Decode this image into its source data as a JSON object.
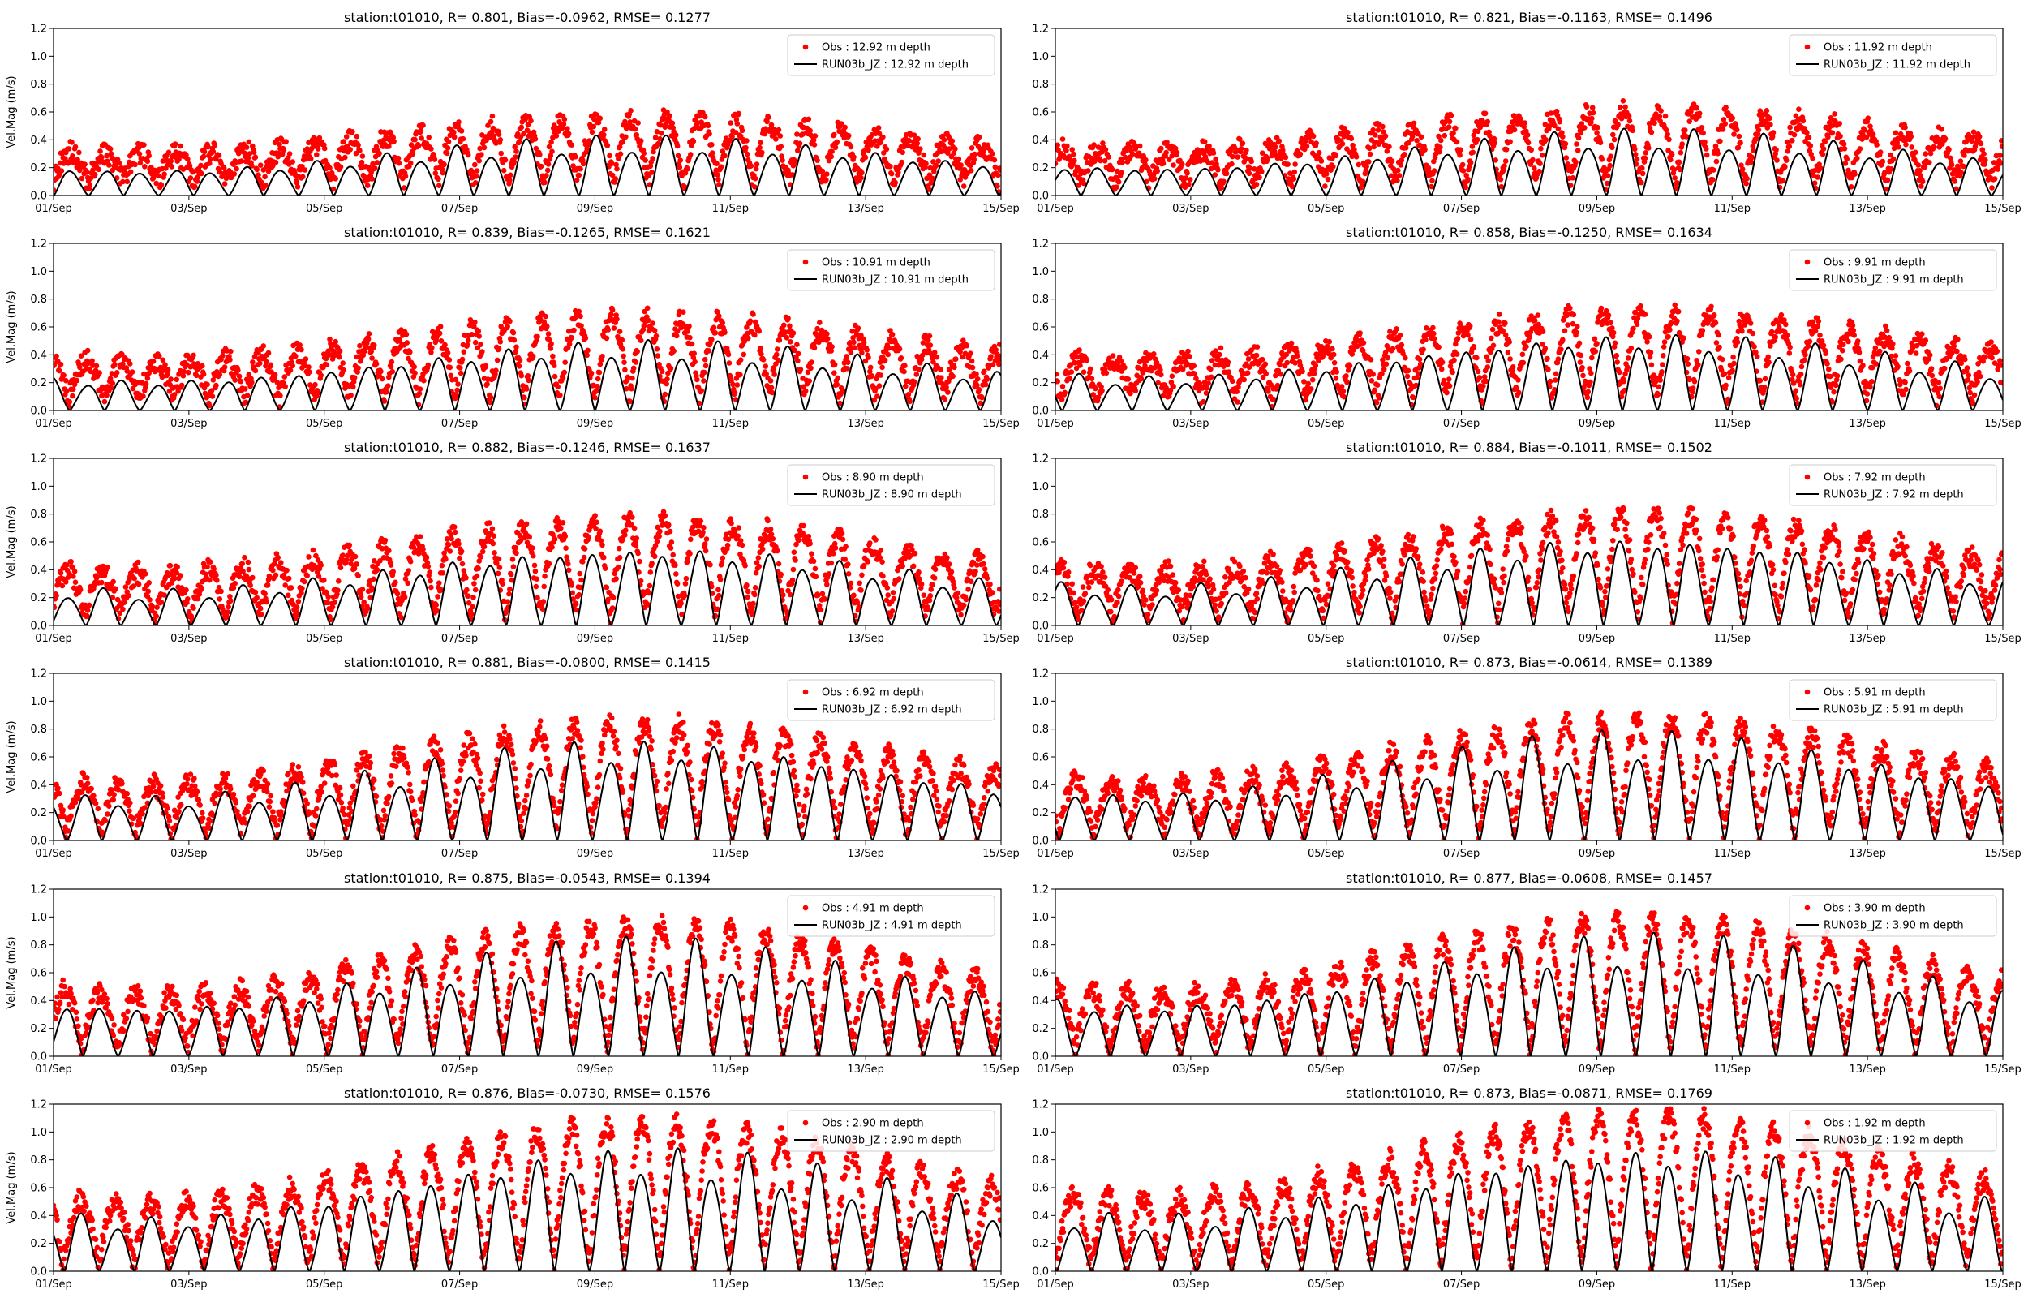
{
  "chart_data": [
    {
      "type": "scatter",
      "title": "station:t01010, R= 0.801, Bias=-0.0962, RMSE= 0.1277",
      "ylabel": "Vel.Mag (m/s)",
      "xlim": [
        "01/Sep",
        "15/Sep"
      ],
      "ylim": [
        0,
        1.2
      ],
      "xticks": [
        "01/Sep",
        "03/Sep",
        "05/Sep",
        "07/Sep",
        "09/Sep",
        "11/Sep",
        "13/Sep",
        "15/Sep"
      ],
      "yticks": [
        "0.0",
        "0.2",
        "0.4",
        "0.6",
        "0.8",
        "1.0",
        "1.2"
      ],
      "legend_placement": "upper right",
      "series": [
        {
          "name": "Obs : 12.92 m depth",
          "kind": "points",
          "color": "#ff0000",
          "approx_peak": 0.5,
          "approx_trough": 0.1
        },
        {
          "name": "RUN03b_JZ : 12.92 m depth",
          "kind": "line",
          "color": "#000000",
          "approx_peak": 0.38,
          "approx_trough": 0.0
        }
      ]
    },
    {
      "type": "scatter",
      "title": "station:t01010, R= 0.821, Bias=-0.1163, RMSE= 0.1496",
      "ylabel": "",
      "xlim": [
        "01/Sep",
        "15/Sep"
      ],
      "ylim": [
        0,
        1.2
      ],
      "xticks": [
        "01/Sep",
        "03/Sep",
        "05/Sep",
        "07/Sep",
        "09/Sep",
        "11/Sep",
        "13/Sep",
        "15/Sep"
      ],
      "yticks": [
        "0.0",
        "0.2",
        "0.4",
        "0.6",
        "0.8",
        "1.0",
        "1.2"
      ],
      "legend_placement": "upper right",
      "series": [
        {
          "name": "Obs : 11.92 m depth",
          "kind": "points",
          "color": "#ff0000",
          "approx_peak": 0.55,
          "approx_trough": 0.1
        },
        {
          "name": "RUN03b_JZ : 11.92 m depth",
          "kind": "line",
          "color": "#000000",
          "approx_peak": 0.42,
          "approx_trough": 0.0
        }
      ]
    },
    {
      "type": "scatter",
      "title": "station:t01010, R= 0.839, Bias=-0.1265, RMSE= 0.1621",
      "ylabel": "Vel.Mag (m/s)",
      "xlim": [
        "01/Sep",
        "15/Sep"
      ],
      "ylim": [
        0,
        1.2
      ],
      "xticks": [
        "01/Sep",
        "03/Sep",
        "05/Sep",
        "07/Sep",
        "09/Sep",
        "11/Sep",
        "13/Sep",
        "15/Sep"
      ],
      "yticks": [
        "0.0",
        "0.2",
        "0.4",
        "0.6",
        "0.8",
        "1.0",
        "1.2"
      ],
      "legend_placement": "upper right",
      "series": [
        {
          "name": "Obs : 10.91 m depth",
          "kind": "points",
          "color": "#ff0000",
          "approx_peak": 0.6,
          "approx_trough": 0.1
        },
        {
          "name": "RUN03b_JZ : 10.91 m depth",
          "kind": "line",
          "color": "#000000",
          "approx_peak": 0.45,
          "approx_trough": 0.0
        }
      ]
    },
    {
      "type": "scatter",
      "title": "station:t01010, R= 0.858, Bias=-0.1250, RMSE= 0.1634",
      "ylabel": "",
      "xlim": [
        "01/Sep",
        "15/Sep"
      ],
      "ylim": [
        0,
        1.2
      ],
      "xticks": [
        "01/Sep",
        "03/Sep",
        "05/Sep",
        "07/Sep",
        "09/Sep",
        "11/Sep",
        "13/Sep",
        "15/Sep"
      ],
      "yticks": [
        "0.0",
        "0.2",
        "0.4",
        "0.6",
        "0.8",
        "1.0",
        "1.2"
      ],
      "legend_placement": "upper right",
      "series": [
        {
          "name": "Obs : 9.91 m depth",
          "kind": "points",
          "color": "#ff0000",
          "approx_peak": 0.63,
          "approx_trough": 0.1
        },
        {
          "name": "RUN03b_JZ : 9.91 m depth",
          "kind": "line",
          "color": "#000000",
          "approx_peak": 0.5,
          "approx_trough": 0.0
        }
      ]
    },
    {
      "type": "scatter",
      "title": "station:t01010, R= 0.882, Bias=-0.1246, RMSE= 0.1637",
      "ylabel": "Vel.Mag (m/s)",
      "xlim": [
        "01/Sep",
        "15/Sep"
      ],
      "ylim": [
        0,
        1.2
      ],
      "xticks": [
        "01/Sep",
        "03/Sep",
        "05/Sep",
        "07/Sep",
        "09/Sep",
        "11/Sep",
        "13/Sep",
        "15/Sep"
      ],
      "yticks": [
        "0.0",
        "0.2",
        "0.4",
        "0.6",
        "0.8",
        "1.0",
        "1.2"
      ],
      "legend_placement": "upper right",
      "series": [
        {
          "name": "Obs : 8.90 m depth",
          "kind": "points",
          "color": "#ff0000",
          "approx_peak": 0.68,
          "approx_trough": 0.08
        },
        {
          "name": "RUN03b_JZ : 8.90 m depth",
          "kind": "line",
          "color": "#000000",
          "approx_peak": 0.52,
          "approx_trough": 0.0
        }
      ]
    },
    {
      "type": "scatter",
      "title": "station:t01010, R= 0.884, Bias=-0.1011, RMSE= 0.1502",
      "ylabel": "",
      "xlim": [
        "01/Sep",
        "15/Sep"
      ],
      "ylim": [
        0,
        1.2
      ],
      "xticks": [
        "01/Sep",
        "03/Sep",
        "05/Sep",
        "07/Sep",
        "09/Sep",
        "11/Sep",
        "13/Sep",
        "15/Sep"
      ],
      "yticks": [
        "0.0",
        "0.2",
        "0.4",
        "0.6",
        "0.8",
        "1.0",
        "1.2"
      ],
      "legend_placement": "upper right",
      "series": [
        {
          "name": "Obs : 7.92 m depth",
          "kind": "points",
          "color": "#ff0000",
          "approx_peak": 0.72,
          "approx_trough": 0.08
        },
        {
          "name": "RUN03b_JZ : 7.92 m depth",
          "kind": "line",
          "color": "#000000",
          "approx_peak": 0.58,
          "approx_trough": 0.0
        }
      ]
    },
    {
      "type": "scatter",
      "title": "station:t01010, R= 0.881, Bias=-0.0800, RMSE= 0.1415",
      "ylabel": "Vel.Mag (m/s)",
      "xlim": [
        "01/Sep",
        "15/Sep"
      ],
      "ylim": [
        0,
        1.2
      ],
      "xticks": [
        "01/Sep",
        "03/Sep",
        "05/Sep",
        "07/Sep",
        "09/Sep",
        "11/Sep",
        "13/Sep",
        "15/Sep"
      ],
      "yticks": [
        "0.0",
        "0.2",
        "0.4",
        "0.6",
        "0.8",
        "1.0",
        "1.2"
      ],
      "legend_placement": "upper right",
      "series": [
        {
          "name": "Obs : 6.92 m depth",
          "kind": "points",
          "color": "#ff0000",
          "approx_peak": 0.75,
          "approx_trough": 0.06
        },
        {
          "name": "RUN03b_JZ : 6.92 m depth",
          "kind": "line",
          "color": "#000000",
          "approx_peak": 0.65,
          "approx_trough": 0.0
        }
      ]
    },
    {
      "type": "scatter",
      "title": "station:t01010, R= 0.873, Bias=-0.0614, RMSE= 0.1389",
      "ylabel": "",
      "xlim": [
        "01/Sep",
        "15/Sep"
      ],
      "ylim": [
        0,
        1.2
      ],
      "xticks": [
        "01/Sep",
        "03/Sep",
        "05/Sep",
        "07/Sep",
        "09/Sep",
        "11/Sep",
        "13/Sep",
        "15/Sep"
      ],
      "yticks": [
        "0.0",
        "0.2",
        "0.4",
        "0.6",
        "0.8",
        "1.0",
        "1.2"
      ],
      "legend_placement": "upper right",
      "series": [
        {
          "name": "Obs : 5.91 m depth",
          "kind": "points",
          "color": "#ff0000",
          "approx_peak": 0.78,
          "approx_trough": 0.06
        },
        {
          "name": "RUN03b_JZ : 5.91 m depth",
          "kind": "line",
          "color": "#000000",
          "approx_peak": 0.7,
          "approx_trough": 0.0
        }
      ]
    },
    {
      "type": "scatter",
      "title": "station:t01010, R= 0.875, Bias=-0.0543, RMSE= 0.1394",
      "ylabel": "Vel.Mag (m/s)",
      "xlim": [
        "01/Sep",
        "15/Sep"
      ],
      "ylim": [
        0,
        1.2
      ],
      "xticks": [
        "01/Sep",
        "03/Sep",
        "05/Sep",
        "07/Sep",
        "09/Sep",
        "11/Sep",
        "13/Sep",
        "15/Sep"
      ],
      "yticks": [
        "0.0",
        "0.2",
        "0.4",
        "0.6",
        "0.8",
        "1.0",
        "1.2"
      ],
      "legend_placement": "upper right",
      "series": [
        {
          "name": "Obs : 4.91 m depth",
          "kind": "points",
          "color": "#ff0000",
          "approx_peak": 0.85,
          "approx_trough": 0.05
        },
        {
          "name": "RUN03b_JZ : 4.91 m depth",
          "kind": "line",
          "color": "#000000",
          "approx_peak": 0.75,
          "approx_trough": 0.0
        }
      ]
    },
    {
      "type": "scatter",
      "title": "station:t01010, R= 0.877, Bias=-0.0608, RMSE= 0.1457",
      "ylabel": "",
      "xlim": [
        "01/Sep",
        "15/Sep"
      ],
      "ylim": [
        0,
        1.2
      ],
      "xticks": [
        "01/Sep",
        "03/Sep",
        "05/Sep",
        "07/Sep",
        "09/Sep",
        "11/Sep",
        "13/Sep",
        "15/Sep"
      ],
      "yticks": [
        "0.0",
        "0.2",
        "0.4",
        "0.6",
        "0.8",
        "1.0",
        "1.2"
      ],
      "legend_placement": "upper right",
      "series": [
        {
          "name": "Obs : 3.90 m depth",
          "kind": "points",
          "color": "#ff0000",
          "approx_peak": 0.88,
          "approx_trough": 0.05
        },
        {
          "name": "RUN03b_JZ : 3.90 m depth",
          "kind": "line",
          "color": "#000000",
          "approx_peak": 0.78,
          "approx_trough": 0.0
        }
      ]
    },
    {
      "type": "scatter",
      "title": "station:t01010, R= 0.876, Bias=-0.0730, RMSE= 0.1576",
      "ylabel": "Vel.Mag (m/s)",
      "xlim": [
        "01/Sep",
        "15/Sep"
      ],
      "ylim": [
        0,
        1.2
      ],
      "xticks": [
        "01/Sep",
        "03/Sep",
        "05/Sep",
        "07/Sep",
        "09/Sep",
        "11/Sep",
        "13/Sep",
        "15/Sep"
      ],
      "yticks": [
        "0.0",
        "0.2",
        "0.4",
        "0.6",
        "0.8",
        "1.0",
        "1.2"
      ],
      "legend_placement": "upper right",
      "series": [
        {
          "name": "Obs : 2.90 m depth",
          "kind": "points",
          "color": "#ff0000",
          "approx_peak": 0.95,
          "approx_trough": 0.05
        },
        {
          "name": "RUN03b_JZ : 2.90 m depth",
          "kind": "line",
          "color": "#000000",
          "approx_peak": 0.8,
          "approx_trough": 0.0
        }
      ]
    },
    {
      "type": "scatter",
      "title": "station:t01010, R= 0.873, Bias=-0.0871, RMSE= 0.1769",
      "ylabel": "",
      "xlim": [
        "01/Sep",
        "15/Sep"
      ],
      "ylim": [
        0,
        1.2
      ],
      "xticks": [
        "01/Sep",
        "03/Sep",
        "05/Sep",
        "07/Sep",
        "09/Sep",
        "11/Sep",
        "13/Sep",
        "15/Sep"
      ],
      "yticks": [
        "0.0",
        "0.2",
        "0.4",
        "0.6",
        "0.8",
        "1.0",
        "1.2"
      ],
      "legend_placement": "upper right",
      "series": [
        {
          "name": "Obs : 1.92 m depth",
          "kind": "points",
          "color": "#ff0000",
          "approx_peak": 1.0,
          "approx_trough": 0.05
        },
        {
          "name": "RUN03b_JZ : 1.92 m depth",
          "kind": "line",
          "color": "#000000",
          "approx_peak": 0.82,
          "approx_trough": 0.0
        }
      ]
    }
  ]
}
